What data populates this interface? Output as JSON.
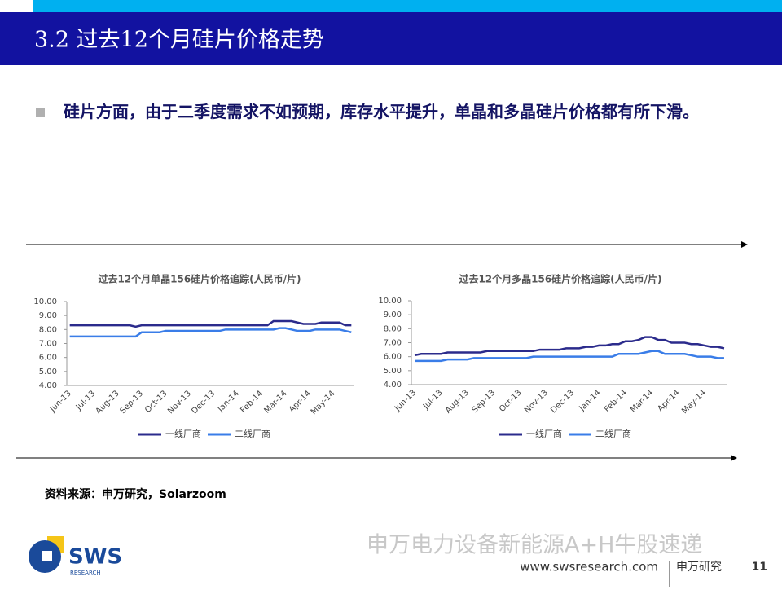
{
  "header": {
    "title": "3.2 过去12个月硅片价格走势"
  },
  "bullet": "硅片方面，由于二季度需求不如预期，库存水平提升，单晶和多晶硅片价格都有所下滑。",
  "source": "资料来源：申万研究，Solarzoom",
  "logo": {
    "name": "SWS",
    "sub": "RESEARCH"
  },
  "watermark": "申万电力设备新能源A+H牛股速递",
  "footer": {
    "website": "www.swsresearch.com",
    "brand": "申万研究",
    "page": "11"
  },
  "chart_data": [
    {
      "type": "line",
      "title": "过去12个月单晶156硅片价格追踪(人民币/片)",
      "categories": [
        "Jun-13",
        null,
        null,
        null,
        "Jul-13",
        null,
        null,
        null,
        "Aug-13",
        null,
        null,
        null,
        "Sep-13",
        null,
        null,
        null,
        "Oct-13",
        null,
        null,
        null,
        "Nov-13",
        null,
        null,
        null,
        "Dec-13",
        null,
        null,
        null,
        "Jan-14",
        null,
        null,
        null,
        "Feb-14",
        null,
        null,
        null,
        "Mar-14",
        null,
        null,
        null,
        "Apr-14",
        null,
        null,
        null,
        "May-14",
        null,
        null,
        null
      ],
      "ylim": [
        4,
        10
      ],
      "yticks": [
        {
          "value": 4,
          "label": "4.00"
        },
        {
          "value": 5,
          "label": "5.00"
        },
        {
          "value": 6,
          "label": "6.00"
        },
        {
          "value": 7,
          "label": "7.00"
        },
        {
          "value": 8,
          "label": "8.00"
        },
        {
          "value": 9,
          "label": "9.00"
        },
        {
          "value": 10,
          "label": "10.00"
        }
      ],
      "series": [
        {
          "name": "一线厂商",
          "color": "#2b2b8c",
          "values": [
            8.3,
            8.3,
            8.3,
            8.3,
            8.3,
            8.3,
            8.3,
            8.3,
            8.3,
            8.3,
            8.3,
            8.2,
            8.3,
            8.3,
            8.3,
            8.3,
            8.3,
            8.3,
            8.3,
            8.3,
            8.3,
            8.3,
            8.3,
            8.3,
            8.3,
            8.3,
            8.3,
            8.3,
            8.3,
            8.3,
            8.3,
            8.3,
            8.3,
            8.3,
            8.6,
            8.6,
            8.6,
            8.6,
            8.5,
            8.4,
            8.4,
            8.4,
            8.5,
            8.5,
            8.5,
            8.5,
            8.3,
            8.3
          ]
        },
        {
          "name": "二线厂商",
          "color": "#3a7de8",
          "values": [
            7.5,
            7.5,
            7.5,
            7.5,
            7.5,
            7.5,
            7.5,
            7.5,
            7.5,
            7.5,
            7.5,
            7.5,
            7.8,
            7.8,
            7.8,
            7.8,
            7.9,
            7.9,
            7.9,
            7.9,
            7.9,
            7.9,
            7.9,
            7.9,
            7.9,
            7.9,
            8.0,
            8.0,
            8.0,
            8.0,
            8.0,
            8.0,
            8.0,
            8.0,
            8.0,
            8.1,
            8.1,
            8.0,
            7.9,
            7.9,
            7.9,
            8.0,
            8.0,
            8.0,
            8.0,
            8.0,
            7.9,
            7.8
          ]
        }
      ]
    },
    {
      "type": "line",
      "title": "过去12个月多晶156硅片价格追踪(人民币/片)",
      "categories": [
        "Jun-13",
        null,
        null,
        null,
        "Jul-13",
        null,
        null,
        null,
        "Aug-13",
        null,
        null,
        null,
        "Sep-13",
        null,
        null,
        null,
        "Oct-13",
        null,
        null,
        null,
        "Nov-13",
        null,
        null,
        null,
        "Dec-13",
        null,
        null,
        null,
        "Jan-14",
        null,
        null,
        null,
        "Feb-14",
        null,
        null,
        null,
        "Mar-14",
        null,
        null,
        null,
        "Apr-14",
        null,
        null,
        null,
        "May-14",
        null,
        null,
        null
      ],
      "ylim": [
        4,
        10
      ],
      "yticks": [
        {
          "value": 4,
          "label": "4.00"
        },
        {
          "value": 5,
          "label": "5.00"
        },
        {
          "value": 6,
          "label": "6.00"
        },
        {
          "value": 7,
          "label": "7.00"
        },
        {
          "value": 8,
          "label": "8.00"
        },
        {
          "value": 9,
          "label": "9.00"
        },
        {
          "value": 10,
          "label": "10.00"
        }
      ],
      "series": [
        {
          "name": "一线厂商",
          "color": "#2b2b8c",
          "values": [
            6.1,
            6.2,
            6.2,
            6.2,
            6.2,
            6.3,
            6.3,
            6.3,
            6.3,
            6.3,
            6.3,
            6.4,
            6.4,
            6.4,
            6.4,
            6.4,
            6.4,
            6.4,
            6.4,
            6.5,
            6.5,
            6.5,
            6.5,
            6.6,
            6.6,
            6.6,
            6.7,
            6.7,
            6.8,
            6.8,
            6.9,
            6.9,
            7.1,
            7.1,
            7.2,
            7.4,
            7.4,
            7.2,
            7.2,
            7.0,
            7.0,
            7.0,
            6.9,
            6.9,
            6.8,
            6.7,
            6.7,
            6.6
          ]
        },
        {
          "name": "二线厂商",
          "color": "#3a7de8",
          "values": [
            5.7,
            5.7,
            5.7,
            5.7,
            5.7,
            5.8,
            5.8,
            5.8,
            5.8,
            5.9,
            5.9,
            5.9,
            5.9,
            5.9,
            5.9,
            5.9,
            5.9,
            5.9,
            6.0,
            6.0,
            6.0,
            6.0,
            6.0,
            6.0,
            6.0,
            6.0,
            6.0,
            6.0,
            6.0,
            6.0,
            6.0,
            6.2,
            6.2,
            6.2,
            6.2,
            6.3,
            6.4,
            6.4,
            6.2,
            6.2,
            6.2,
            6.2,
            6.1,
            6.0,
            6.0,
            6.0,
            5.9,
            5.9
          ]
        }
      ]
    }
  ]
}
